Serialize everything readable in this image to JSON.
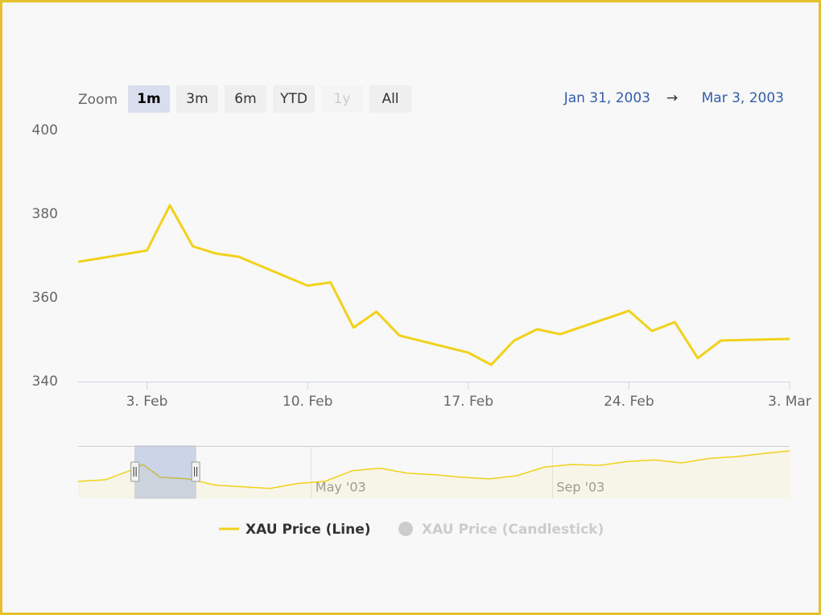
{
  "range_selector": {
    "zoom_label": "Zoom",
    "buttons": [
      "1m",
      "3m",
      "6m",
      "YTD",
      "1y",
      "All"
    ],
    "selected": 0,
    "disabled": [
      4
    ],
    "from": "Jan 31, 2003",
    "separator": "→",
    "to": "Mar 3, 2003"
  },
  "chart_data": [
    {
      "type": "line",
      "x": [
        "2003-01-31",
        "2003-02-03",
        "2003-02-04",
        "2003-02-05",
        "2003-02-06",
        "2003-02-07",
        "2003-02-10",
        "2003-02-11",
        "2003-02-12",
        "2003-02-13",
        "2003-02-14",
        "2003-02-17",
        "2003-02-18",
        "2003-02-19",
        "2003-02-20",
        "2003-02-21",
        "2003-02-24",
        "2003-02-25",
        "2003-02-26",
        "2003-02-27",
        "2003-02-28",
        "2003-03-03"
      ],
      "series": [
        {
          "name": "XAU Price (Line)",
          "color": "#f2d11b",
          "values": [
            368.6,
            371.3,
            382.1,
            372.3,
            370.6,
            369.8,
            362.9,
            363.7,
            352.9,
            356.7,
            351.0,
            346.9,
            344.0,
            349.8,
            352.5,
            351.3,
            356.9,
            352.1,
            354.2,
            345.6,
            349.8,
            350.2
          ]
        }
      ],
      "hidden_series": [
        {
          "name": "XAU Price (Candlestick)",
          "color": "#cccccc"
        }
      ],
      "xlim": [
        "2003-01-31",
        "2003-03-03"
      ],
      "xticks": [
        {
          "value": "2003-02-03",
          "label": "3. Feb"
        },
        {
          "value": "2003-02-10",
          "label": "10. Feb"
        },
        {
          "value": "2003-02-17",
          "label": "17. Feb"
        },
        {
          "value": "2003-02-24",
          "label": "24. Feb"
        },
        {
          "value": "2003-03-03",
          "label": "3. Mar"
        }
      ],
      "ylim": [
        340,
        400
      ],
      "yticks": [
        340,
        360,
        380,
        400
      ],
      "grid": false
    },
    {
      "type": "navigator",
      "x": [
        "2003-01-02",
        "2003-01-16",
        "2003-01-30",
        "2003-02-04",
        "2003-02-13",
        "2003-02-27",
        "2003-03-13",
        "2003-03-27",
        "2003-04-10",
        "2003-04-24",
        "2003-05-08",
        "2003-05-22",
        "2003-06-05",
        "2003-06-19",
        "2003-07-03",
        "2003-07-17",
        "2003-07-31",
        "2003-08-14",
        "2003-08-28",
        "2003-09-11",
        "2003-09-25",
        "2003-10-09",
        "2003-10-23",
        "2003-11-06",
        "2003-11-20",
        "2003-12-04",
        "2003-12-18",
        "2003-12-31"
      ],
      "series": [
        {
          "color": "#f2d11b",
          "values": [
            341,
            345,
            370,
            382,
            351,
            347,
            332,
            328,
            324,
            336,
            341,
            367,
            373,
            361,
            357,
            351,
            347,
            355,
            376,
            382,
            380,
            389,
            393,
            386,
            397,
            401,
            409,
            415
          ]
        }
      ],
      "xlim": [
        "2003-01-02",
        "2003-12-31"
      ],
      "xticks": [
        {
          "value": "2003-05-01",
          "label": "May '03"
        },
        {
          "value": "2003-09-01",
          "label": "Sep '03"
        }
      ],
      "ylim": [
        300,
        427
      ],
      "window": [
        "2003-01-31",
        "2003-03-03"
      ]
    }
  ]
}
